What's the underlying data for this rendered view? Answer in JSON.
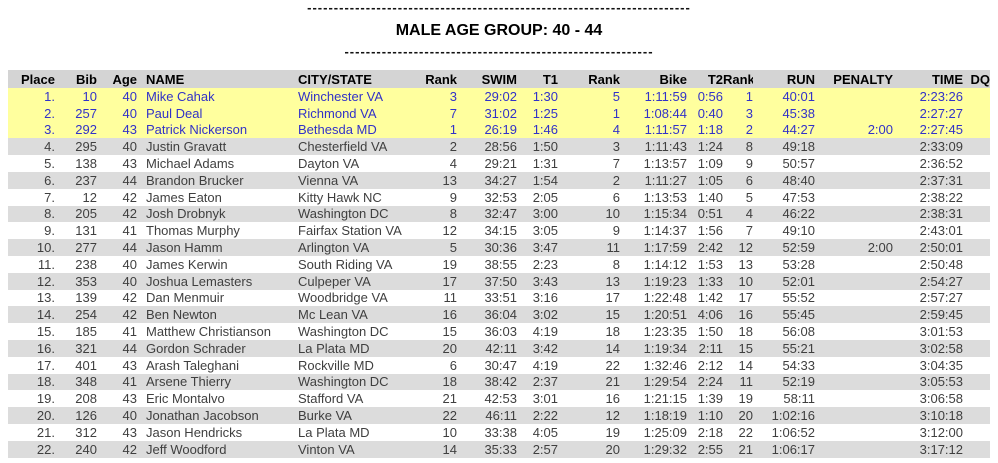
{
  "header": {
    "dash_top": "------------------------------------------------------------------------",
    "title": "MALE AGE GROUP: 40 - 44",
    "dash_bottom": "----------------------------------------------------------"
  },
  "colors": {
    "highlight_bg": "#FFFF9E",
    "highlight_text": "#3232C8",
    "header_row_bg": "#D4D4D4",
    "alt_row_bg": "#DCDCDC",
    "body_text": "#3F3F3F"
  },
  "table": {
    "columns": [
      {
        "key": "place",
        "label": "Place"
      },
      {
        "key": "bib",
        "label": "Bib"
      },
      {
        "key": "age",
        "label": "Age"
      },
      {
        "key": "name",
        "label": "NAME"
      },
      {
        "key": "city",
        "label": "CITY/STATE"
      },
      {
        "key": "swim_rank",
        "label": "Rank"
      },
      {
        "key": "swim",
        "label": "SWIM"
      },
      {
        "key": "t1",
        "label": "T1"
      },
      {
        "key": "bike_rank",
        "label": "Rank"
      },
      {
        "key": "bike",
        "label": "Bike"
      },
      {
        "key": "t2",
        "label": "T2"
      },
      {
        "key": "run_rank",
        "label": "Rank"
      },
      {
        "key": "run",
        "label": "RUN"
      },
      {
        "key": "penalty",
        "label": "PENALTY"
      },
      {
        "key": "time",
        "label": "TIME"
      },
      {
        "key": "dq",
        "label": "DQ"
      }
    ],
    "rows": [
      {
        "place": "1.",
        "bib": "10",
        "age": "40",
        "name": "Mike Cahak",
        "city": "Winchester VA",
        "swim_rank": "3",
        "swim": "29:02",
        "t1": "1:30",
        "bike_rank": "5",
        "bike": "1:11:59",
        "t2": "0:56",
        "run_rank": "1",
        "run": "40:01",
        "penalty": "",
        "time": "2:23:26",
        "dq": "",
        "highlight": true
      },
      {
        "place": "2.",
        "bib": "257",
        "age": "40",
        "name": "Paul Deal",
        "city": "Richmond VA",
        "swim_rank": "7",
        "swim": "31:02",
        "t1": "1:25",
        "bike_rank": "1",
        "bike": "1:08:44",
        "t2": "0:40",
        "run_rank": "3",
        "run": "45:38",
        "penalty": "",
        "time": "2:27:27",
        "dq": "",
        "highlight": true
      },
      {
        "place": "3.",
        "bib": "292",
        "age": "43",
        "name": "Patrick Nickerson",
        "city": "Bethesda MD",
        "swim_rank": "1",
        "swim": "26:19",
        "t1": "1:46",
        "bike_rank": "4",
        "bike": "1:11:57",
        "t2": "1:18",
        "run_rank": "2",
        "run": "44:27",
        "penalty": "2:00",
        "time": "2:27:45",
        "dq": "",
        "highlight": true
      },
      {
        "place": "4.",
        "bib": "295",
        "age": "40",
        "name": "Justin Gravatt",
        "city": "Chesterfield VA",
        "swim_rank": "2",
        "swim": "28:56",
        "t1": "1:50",
        "bike_rank": "3",
        "bike": "1:11:43",
        "t2": "1:24",
        "run_rank": "8",
        "run": "49:18",
        "penalty": "",
        "time": "2:33:09",
        "dq": "",
        "highlight": false
      },
      {
        "place": "5.",
        "bib": "138",
        "age": "43",
        "name": "Michael Adams",
        "city": "Dayton VA",
        "swim_rank": "4",
        "swim": "29:21",
        "t1": "1:31",
        "bike_rank": "7",
        "bike": "1:13:57",
        "t2": "1:09",
        "run_rank": "9",
        "run": "50:57",
        "penalty": "",
        "time": "2:36:52",
        "dq": "",
        "highlight": false
      },
      {
        "place": "6.",
        "bib": "237",
        "age": "44",
        "name": "Brandon Brucker",
        "city": "Vienna VA",
        "swim_rank": "13",
        "swim": "34:27",
        "t1": "1:54",
        "bike_rank": "2",
        "bike": "1:11:27",
        "t2": "1:05",
        "run_rank": "6",
        "run": "48:40",
        "penalty": "",
        "time": "2:37:31",
        "dq": "",
        "highlight": false
      },
      {
        "place": "7.",
        "bib": "12",
        "age": "42",
        "name": "James Eaton",
        "city": "Kitty Hawk NC",
        "swim_rank": "9",
        "swim": "32:53",
        "t1": "2:05",
        "bike_rank": "6",
        "bike": "1:13:53",
        "t2": "1:40",
        "run_rank": "5",
        "run": "47:53",
        "penalty": "",
        "time": "2:38:22",
        "dq": "",
        "highlight": false
      },
      {
        "place": "8.",
        "bib": "205",
        "age": "42",
        "name": "Josh Drobnyk",
        "city": "Washington DC",
        "swim_rank": "8",
        "swim": "32:47",
        "t1": "3:00",
        "bike_rank": "10",
        "bike": "1:15:34",
        "t2": "0:51",
        "run_rank": "4",
        "run": "46:22",
        "penalty": "",
        "time": "2:38:31",
        "dq": "",
        "highlight": false
      },
      {
        "place": "9.",
        "bib": "131",
        "age": "41",
        "name": "Thomas Murphy",
        "city": "Fairfax Station VA",
        "swim_rank": "12",
        "swim": "34:15",
        "t1": "3:05",
        "bike_rank": "9",
        "bike": "1:14:37",
        "t2": "1:56",
        "run_rank": "7",
        "run": "49:10",
        "penalty": "",
        "time": "2:43:01",
        "dq": "",
        "highlight": false
      },
      {
        "place": "10.",
        "bib": "277",
        "age": "44",
        "name": "Jason Hamm",
        "city": "Arlington VA",
        "swim_rank": "5",
        "swim": "30:36",
        "t1": "3:47",
        "bike_rank": "11",
        "bike": "1:17:59",
        "t2": "2:42",
        "run_rank": "12",
        "run": "52:59",
        "penalty": "2:00",
        "time": "2:50:01",
        "dq": "",
        "highlight": false
      },
      {
        "place": "11.",
        "bib": "238",
        "age": "40",
        "name": "James Kerwin",
        "city": "South Riding VA",
        "swim_rank": "19",
        "swim": "38:55",
        "t1": "2:23",
        "bike_rank": "8",
        "bike": "1:14:12",
        "t2": "1:53",
        "run_rank": "13",
        "run": "53:28",
        "penalty": "",
        "time": "2:50:48",
        "dq": "",
        "highlight": false
      },
      {
        "place": "12.",
        "bib": "353",
        "age": "40",
        "name": "Joshua Lemasters",
        "city": "Culpeper VA",
        "swim_rank": "17",
        "swim": "37:50",
        "t1": "3:43",
        "bike_rank": "13",
        "bike": "1:19:23",
        "t2": "1:33",
        "run_rank": "10",
        "run": "52:01",
        "penalty": "",
        "time": "2:54:27",
        "dq": "",
        "highlight": false
      },
      {
        "place": "13.",
        "bib": "139",
        "age": "42",
        "name": "Dan Menmuir",
        "city": "Woodbridge VA",
        "swim_rank": "11",
        "swim": "33:51",
        "t1": "3:16",
        "bike_rank": "17",
        "bike": "1:22:48",
        "t2": "1:42",
        "run_rank": "17",
        "run": "55:52",
        "penalty": "",
        "time": "2:57:27",
        "dq": "",
        "highlight": false
      },
      {
        "place": "14.",
        "bib": "254",
        "age": "42",
        "name": "Ben Newton",
        "city": "Mc Lean VA",
        "swim_rank": "16",
        "swim": "36:04",
        "t1": "3:02",
        "bike_rank": "15",
        "bike": "1:20:51",
        "t2": "4:06",
        "run_rank": "16",
        "run": "55:45",
        "penalty": "",
        "time": "2:59:45",
        "dq": "",
        "highlight": false
      },
      {
        "place": "15.",
        "bib": "185",
        "age": "41",
        "name": "Matthew Christianson",
        "city": "Washington DC",
        "swim_rank": "15",
        "swim": "36:03",
        "t1": "4:19",
        "bike_rank": "18",
        "bike": "1:23:35",
        "t2": "1:50",
        "run_rank": "18",
        "run": "56:08",
        "penalty": "",
        "time": "3:01:53",
        "dq": "",
        "highlight": false
      },
      {
        "place": "16.",
        "bib": "321",
        "age": "44",
        "name": "Gordon Schrader",
        "city": "La Plata MD",
        "swim_rank": "20",
        "swim": "42:11",
        "t1": "3:42",
        "bike_rank": "14",
        "bike": "1:19:34",
        "t2": "2:11",
        "run_rank": "15",
        "run": "55:21",
        "penalty": "",
        "time": "3:02:58",
        "dq": "",
        "highlight": false
      },
      {
        "place": "17.",
        "bib": "401",
        "age": "43",
        "name": "Arash Taleghani",
        "city": "Rockville MD",
        "swim_rank": "6",
        "swim": "30:47",
        "t1": "4:19",
        "bike_rank": "22",
        "bike": "1:32:46",
        "t2": "2:12",
        "run_rank": "14",
        "run": "54:33",
        "penalty": "",
        "time": "3:04:35",
        "dq": "",
        "highlight": false
      },
      {
        "place": "18.",
        "bib": "348",
        "age": "41",
        "name": "Arsene Thierry",
        "city": "Washington DC",
        "swim_rank": "18",
        "swim": "38:42",
        "t1": "2:37",
        "bike_rank": "21",
        "bike": "1:29:54",
        "t2": "2:24",
        "run_rank": "11",
        "run": "52:19",
        "penalty": "",
        "time": "3:05:53",
        "dq": "",
        "highlight": false
      },
      {
        "place": "19.",
        "bib": "208",
        "age": "43",
        "name": "Eric Montalvo",
        "city": "Stafford VA",
        "swim_rank": "21",
        "swim": "42:53",
        "t1": "3:01",
        "bike_rank": "16",
        "bike": "1:21:15",
        "t2": "1:39",
        "run_rank": "19",
        "run": "58:11",
        "penalty": "",
        "time": "3:06:58",
        "dq": "",
        "highlight": false
      },
      {
        "place": "20.",
        "bib": "126",
        "age": "40",
        "name": "Jonathan Jacobson",
        "city": "Burke VA",
        "swim_rank": "22",
        "swim": "46:11",
        "t1": "2:22",
        "bike_rank": "12",
        "bike": "1:18:19",
        "t2": "1:10",
        "run_rank": "20",
        "run": "1:02:16",
        "penalty": "",
        "time": "3:10:18",
        "dq": "",
        "highlight": false
      },
      {
        "place": "21.",
        "bib": "312",
        "age": "43",
        "name": "Jason Hendricks",
        "city": "La Plata MD",
        "swim_rank": "10",
        "swim": "33:38",
        "t1": "4:05",
        "bike_rank": "19",
        "bike": "1:25:09",
        "t2": "2:18",
        "run_rank": "22",
        "run": "1:06:52",
        "penalty": "",
        "time": "3:12:00",
        "dq": "",
        "highlight": false
      },
      {
        "place": "22.",
        "bib": "240",
        "age": "42",
        "name": "Jeff Woodford",
        "city": "Vinton VA",
        "swim_rank": "14",
        "swim": "35:33",
        "t1": "2:57",
        "bike_rank": "20",
        "bike": "1:29:32",
        "t2": "2:55",
        "run_rank": "21",
        "run": "1:06:17",
        "penalty": "",
        "time": "3:17:12",
        "dq": "",
        "highlight": false
      }
    ]
  }
}
